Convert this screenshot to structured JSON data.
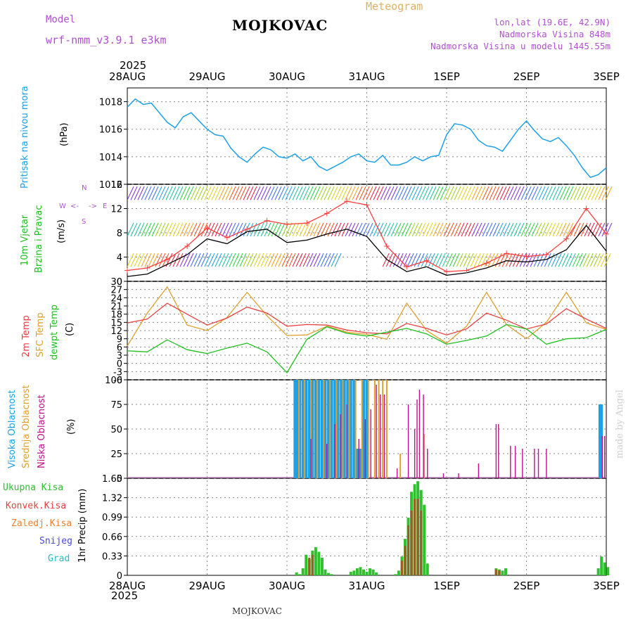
{
  "header": {
    "model_label": "Model",
    "model_name": "wrf-nmm_v3.9.1  e3km",
    "station": "MOJKOVAC",
    "product": "Meteogram",
    "coords": "lon,lat (19.6E, 42.9N)",
    "elevation": "Nadmorska Visina 848m",
    "model_elevation": "Nadmorska Visina u modelu 1445.55m",
    "year_top": "2025",
    "year_bottom": "2025",
    "footer_station": "MOJKOVAC",
    "watermark": "made by Angel"
  },
  "colors": {
    "pressure": "#1ea0e6",
    "temp2m": "#e84040",
    "sfc": "#e0a030",
    "dew": "#20c020",
    "high_cloud": "#1ea0e6",
    "mid_cloud": "#e0a030",
    "low_cloud": "#c0108a",
    "total_precip": "#30c030",
    "conv_precip": "#a05a2a",
    "wind_speed": "#ff4040",
    "wind_gust": "#000000",
    "model_label": "#b050d0",
    "product_label": "#e0b060"
  },
  "x_axis": {
    "dates": [
      "28AUG",
      "29AUG",
      "30AUG",
      "31AUG",
      "1SEP",
      "2SEP",
      "3SEP"
    ]
  },
  "panel_labels": {
    "pressure": [
      "Pritisak na nivou mora"
    ],
    "pressure_unit": "(hPa)",
    "wind": [
      "10m Vjetar",
      "Brzina i Pravac"
    ],
    "wind_unit": "(m/s)",
    "compass": {
      "n": "N",
      "s": "S",
      "e": "E",
      "w": "W"
    },
    "temp": [
      "2m Temp",
      "SFC Temp",
      "dewpt Temp"
    ],
    "temp_unit": "(C)",
    "cloud": [
      "Visoka Oblacnost",
      "Srednja Oblacnost",
      "Niska Oblacnost"
    ],
    "cloud_unit": "(%)",
    "precip_legend": [
      "Ukupna Kisa",
      "Konvek.Kisa",
      "Zaledj.Kisa",
      "Snijeg",
      "Grad"
    ],
    "precip_unit": "1hr Precip (mm)"
  },
  "chart_data": [
    {
      "type": "line",
      "title": "Pritisak na nivou mora",
      "ylabel": "(hPa)",
      "ylim": [
        1012,
        1019
      ],
      "yticks": [
        1012,
        1014,
        1016,
        1018
      ],
      "x": [
        0,
        0.1,
        0.2,
        0.3,
        0.4,
        0.5,
        0.6,
        0.7,
        0.8,
        0.9,
        1.0,
        1.1,
        1.2,
        1.3,
        1.4,
        1.5,
        1.6,
        1.7,
        1.8,
        1.9,
        2.0,
        2.1,
        2.2,
        2.3,
        2.4,
        2.5,
        2.6,
        2.7,
        2.8,
        2.9,
        3.0,
        3.1,
        3.2,
        3.3,
        3.4,
        3.5,
        3.6,
        3.7,
        3.8,
        3.9,
        4.0,
        4.1,
        4.2,
        4.3,
        4.4,
        4.5,
        4.6,
        4.7,
        4.8,
        4.9,
        5.0,
        5.1,
        5.2,
        5.3,
        5.4,
        5.5,
        5.6,
        5.7,
        5.8,
        5.9,
        6.0
      ],
      "series": [
        {
          "name": "pressure",
          "values": [
            1017.6,
            1018.2,
            1017.8,
            1017.9,
            1017.2,
            1016.5,
            1016.1,
            1016.9,
            1017.2,
            1016.6,
            1016.0,
            1015.6,
            1015.5,
            1014.6,
            1014.0,
            1013.6,
            1014.2,
            1014.7,
            1014.5,
            1014.0,
            1013.9,
            1014.2,
            1013.7,
            1014.0,
            1013.3,
            1013.0,
            1013.3,
            1013.6,
            1014.0,
            1014.2,
            1013.7,
            1013.6,
            1014.1,
            1013.4,
            1013.4,
            1013.6,
            1014.0,
            1013.7,
            1014.0,
            1014.1,
            1015.6,
            1016.4,
            1016.3,
            1016.0,
            1015.2,
            1014.8,
            1014.7,
            1014.4,
            1015.2,
            1016.0,
            1016.6,
            1015.9,
            1015.3,
            1015.1,
            1015.4,
            1014.8,
            1014.1,
            1013.2,
            1012.5,
            1012.7,
            1013.2
          ]
        }
      ]
    },
    {
      "type": "line",
      "title": "10m Vjetar Brzina i Pravac",
      "ylabel": "(m/s)",
      "ylim": [
        0,
        16
      ],
      "yticks": [
        0,
        4,
        8,
        12,
        16
      ],
      "x": [
        0,
        0.25,
        0.5,
        0.75,
        1.0,
        1.25,
        1.5,
        1.75,
        2.0,
        2.25,
        2.5,
        2.75,
        3.0,
        3.25,
        3.5,
        3.75,
        4.0,
        4.25,
        4.5,
        4.75,
        5.0,
        5.25,
        5.5,
        5.75,
        6.0
      ],
      "series": [
        {
          "name": "wind_speed",
          "values": [
            1.8,
            2.2,
            3.6,
            5.8,
            8.8,
            7.2,
            8.6,
            10.0,
            9.4,
            9.6,
            11.2,
            13.2,
            12.6,
            5.8,
            2.4,
            3.4,
            1.6,
            1.8,
            3.0,
            4.6,
            4.1,
            4.4,
            7.0,
            12.0,
            7.8
          ]
        },
        {
          "name": "wind_gust",
          "values": [
            0.8,
            1.2,
            2.8,
            4.4,
            7.0,
            6.2,
            8.2,
            8.6,
            6.4,
            6.8,
            7.8,
            8.6,
            7.4,
            3.6,
            1.6,
            2.4,
            1.0,
            1.4,
            2.2,
            3.4,
            3.2,
            3.6,
            5.2,
            9.2,
            5.0
          ]
        }
      ]
    },
    {
      "type": "line",
      "title": "2m Temp / SFC Temp / dewpt Temp",
      "ylabel": "(C)",
      "ylim": [
        -6,
        30
      ],
      "yticks": [
        -6,
        -3,
        0,
        3,
        6,
        9,
        12,
        15,
        18,
        21,
        24,
        27,
        30
      ],
      "x": [
        0,
        0.25,
        0.5,
        0.75,
        1.0,
        1.25,
        1.5,
        1.75,
        2.0,
        2.25,
        2.5,
        2.75,
        3.0,
        3.25,
        3.5,
        3.75,
        4.0,
        4.25,
        4.5,
        4.75,
        5.0,
        5.25,
        5.5,
        5.75,
        6.0
      ],
      "series": [
        {
          "name": "2m Temp",
          "values": [
            14.8,
            16.2,
            22.0,
            18.0,
            14.0,
            16.6,
            20.6,
            18.4,
            13.6,
            14.2,
            14.0,
            12.2,
            11.2,
            10.8,
            14.6,
            12.8,
            10.4,
            12.6,
            18.4,
            15.8,
            12.6,
            14.4,
            20.0,
            16.2,
            12.8
          ]
        },
        {
          "name": "SFC Temp",
          "values": [
            6.4,
            18.4,
            28.0,
            14.0,
            12.0,
            16.8,
            26.0,
            17.4,
            10.2,
            10.4,
            13.6,
            11.4,
            10.6,
            8.8,
            22.0,
            12.0,
            7.4,
            13.6,
            26.0,
            14.2,
            9.0,
            15.0,
            26.0,
            14.8,
            12.4
          ]
        },
        {
          "name": "dewpt Temp",
          "values": [
            4.6,
            4.2,
            8.6,
            5.0,
            3.6,
            5.6,
            7.4,
            4.2,
            -3.4,
            8.8,
            13.4,
            11.0,
            10.0,
            11.4,
            12.8,
            10.8,
            7.0,
            8.4,
            10.0,
            14.2,
            12.6,
            7.0,
            9.0,
            9.4,
            12.4
          ]
        }
      ]
    },
    {
      "type": "bar",
      "title": "Oblacnost",
      "ylabel": "(%)",
      "ylim": [
        0,
        100
      ],
      "yticks": [
        0,
        25,
        50,
        75,
        100
      ],
      "series": [
        {
          "name": "Visoka Oblacnost",
          "x": [
            2.1,
            2.13,
            2.16,
            2.2,
            2.24,
            2.28,
            2.32,
            2.36,
            2.4,
            2.44,
            2.48,
            2.52,
            2.56,
            2.6,
            2.64,
            2.68,
            2.72,
            2.76,
            2.8,
            2.84,
            2.88,
            2.92,
            2.96,
            3.0,
            5.92,
            5.94
          ],
          "values": [
            100,
            100,
            100,
            100,
            100,
            100,
            100,
            100,
            100,
            100,
            100,
            100,
            100,
            100,
            100,
            100,
            100,
            100,
            100,
            100,
            30,
            30,
            100,
            100,
            75,
            75
          ]
        },
        {
          "name": "Srednja Oblacnost",
          "x": [
            2.15,
            2.22,
            2.3,
            2.38,
            2.46,
            2.54,
            2.62,
            2.7,
            2.78,
            2.86,
            2.94,
            3.02,
            3.1,
            3.15,
            3.2,
            3.25,
            3.42,
            3.72
          ],
          "values": [
            100,
            100,
            100,
            100,
            100,
            100,
            100,
            100,
            100,
            100,
            100,
            100,
            100,
            100,
            100,
            100,
            25,
            45
          ]
        },
        {
          "name": "Niska Oblacnost",
          "x": [
            2.3,
            2.5,
            2.6,
            2.67,
            2.75,
            2.9,
            2.98,
            3.05,
            3.12,
            3.17,
            3.22,
            3.38,
            3.52,
            3.6,
            3.63,
            3.66,
            3.71,
            3.76,
            3.96,
            4.15,
            4.4,
            4.62,
            4.65,
            4.8,
            4.86,
            4.95,
            5.1,
            5.15,
            5.25,
            5.95,
            5.98
          ],
          "values": [
            40,
            35,
            55,
            65,
            75,
            40,
            60,
            70,
            95,
            85,
            85,
            10,
            75,
            50,
            80,
            90,
            85,
            30,
            5,
            5,
            15,
            55,
            55,
            33,
            33,
            30,
            30,
            30,
            30,
            43,
            43
          ]
        }
      ]
    },
    {
      "type": "bar",
      "title": "1hr Precip",
      "ylabel": "1hr Precip (mm)",
      "ylim": [
        0,
        1.65
      ],
      "yticks": [
        0,
        0.33,
        0.66,
        0.99,
        1.32,
        1.65
      ],
      "series": [
        {
          "name": "Ukupna Kisa",
          "x": [
            2.12,
            2.16,
            2.2,
            2.24,
            2.28,
            2.32,
            2.36,
            2.4,
            2.44,
            2.48,
            2.52,
            2.56,
            2.8,
            2.84,
            2.88,
            2.92,
            2.96,
            3.0,
            3.04,
            3.08,
            3.12,
            3.36,
            3.4,
            3.44,
            3.48,
            3.52,
            3.56,
            3.6,
            3.64,
            3.68,
            3.72,
            3.76,
            4.62,
            4.66,
            4.7,
            4.74,
            5.9,
            5.94,
            5.98,
            6.02
          ],
          "values": [
            0.05,
            0.02,
            0.12,
            0.35,
            0.28,
            0.42,
            0.48,
            0.4,
            0.3,
            0.1,
            0.04,
            0.02,
            0.06,
            0.08,
            0.12,
            0.14,
            0.1,
            0.06,
            0.12,
            0.1,
            0.05,
            0.02,
            0.08,
            0.32,
            0.62,
            0.98,
            1.42,
            1.55,
            1.6,
            1.45,
            1.2,
            0.2,
            0.12,
            0.1,
            0.08,
            0.12,
            0.12,
            0.32,
            0.22,
            0.14
          ]
        },
        {
          "name": "Konvek.Kisa",
          "x": [
            2.28,
            2.32,
            3.44,
            3.48,
            3.52,
            3.56,
            3.6,
            3.64,
            3.68,
            4.62,
            4.66
          ],
          "values": [
            0.3,
            0.35,
            0.25,
            0.5,
            0.85,
            1.1,
            1.3,
            1.3,
            1.1,
            0.1,
            0.08
          ]
        }
      ]
    }
  ]
}
